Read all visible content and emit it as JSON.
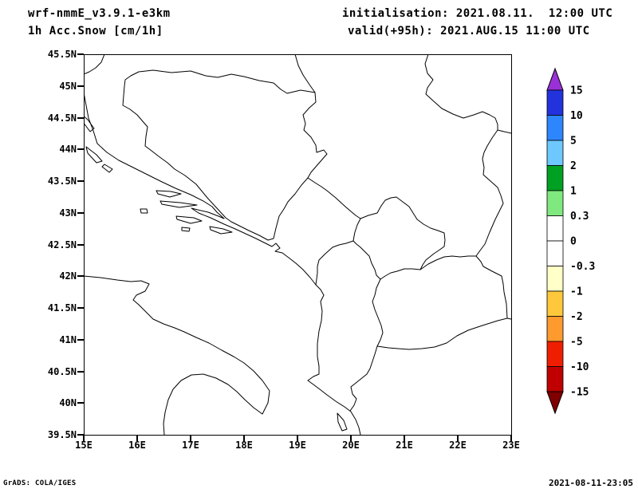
{
  "header": {
    "model": "wrf-nmmE_v3.9.1-e3km",
    "field": "1h Acc.Snow [cm/1h]",
    "init_label": "initialisation: 2021.08.11.  12:00 UTC",
    "valid_label": "valid(+95h): 2021.AUG.15 11:00 UTC"
  },
  "footer": {
    "credit": "GrADS: COLA/IGES",
    "timestamp": "2021-08-11-23:05"
  },
  "chart_data": {
    "type": "heatmap",
    "title": "1h Acc.Snow [cm/1h]",
    "model": "wrf-nmmE_v3.9.1-e3km",
    "initialisation": "2021.08.11. 12:00 UTC",
    "valid": "2021.AUG.15 11:00 UTC (+95h)",
    "map_region": "Adriatic Sea / Balkans coastlines and country borders",
    "projection_extent": {
      "lon_min": 15,
      "lon_max": 23,
      "lat_min": 39.5,
      "lat_max": 45.5
    },
    "x_axis": {
      "ticks": [
        {
          "value": 15,
          "label": "15E"
        },
        {
          "value": 16,
          "label": "16E"
        },
        {
          "value": 17,
          "label": "17E"
        },
        {
          "value": 18,
          "label": "18E"
        },
        {
          "value": 19,
          "label": "19E"
        },
        {
          "value": 20,
          "label": "20E"
        },
        {
          "value": 21,
          "label": "21E"
        },
        {
          "value": 22,
          "label": "22E"
        },
        {
          "value": 23,
          "label": "23E"
        }
      ]
    },
    "y_axis": {
      "ticks": [
        {
          "value": 45.5,
          "label": "45.5N"
        },
        {
          "value": 45,
          "label": "45N"
        },
        {
          "value": 44.5,
          "label": "44.5N"
        },
        {
          "value": 44,
          "label": "44N"
        },
        {
          "value": 43.5,
          "label": "43.5N"
        },
        {
          "value": 43,
          "label": "43N"
        },
        {
          "value": 42.5,
          "label": "42.5N"
        },
        {
          "value": 42,
          "label": "42N"
        },
        {
          "value": 41.5,
          "label": "41.5N"
        },
        {
          "value": 41,
          "label": "41N"
        },
        {
          "value": 40.5,
          "label": "40.5N"
        },
        {
          "value": 40,
          "label": "40N"
        },
        {
          "value": 39.5,
          "label": "39.5N"
        }
      ]
    },
    "field_values": "no nonzero 1h snow accumulation plotted; entire map area is blank (zero / white)",
    "colorbar": {
      "unit": "cm/1h",
      "levels": [
        "15",
        "10",
        "5",
        "2",
        "1",
        "0.3",
        "0",
        "-0.3",
        "-1",
        "-2",
        "-5",
        "-10",
        "-15"
      ],
      "cell_colors": [
        "#2233dd",
        "#2e86ff",
        "#6ec8ff",
        "#00a022",
        "#7fe87f",
        "#ffffff",
        "#ffffff",
        "#ffffc8",
        "#ffc83c",
        "#ff9a2e",
        "#f01e00",
        "#c00000"
      ],
      "triangle_top_color": "#9a30d8",
      "triangle_bottom_color": "#800000"
    }
  }
}
